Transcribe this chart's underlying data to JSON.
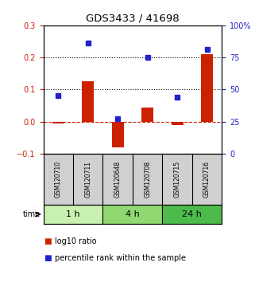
{
  "title": "GDS3433 / 41698",
  "samples": [
    "GSM120710",
    "GSM120711",
    "GSM120648",
    "GSM120708",
    "GSM120715",
    "GSM120716"
  ],
  "log10_ratio": [
    -0.005,
    0.125,
    -0.08,
    0.045,
    -0.01,
    0.21
  ],
  "percentile_rank": [
    0.08,
    0.245,
    0.01,
    0.2,
    0.075,
    0.225
  ],
  "time_groups": [
    {
      "label": "1 h",
      "start": 0,
      "end": 2,
      "color": "#c8f0b0"
    },
    {
      "label": "4 h",
      "start": 2,
      "end": 4,
      "color": "#90d870"
    },
    {
      "label": "24 h",
      "start": 4,
      "end": 6,
      "color": "#4cbb4c"
    }
  ],
  "left_ylim": [
    -0.1,
    0.3
  ],
  "right_ylim": [
    0,
    100
  ],
  "left_yticks": [
    -0.1,
    0.0,
    0.1,
    0.2,
    0.3
  ],
  "right_yticks": [
    0,
    25,
    50,
    75,
    100
  ],
  "right_yticklabels": [
    "0",
    "25",
    "50",
    "75",
    "100%"
  ],
  "hlines": [
    0.1,
    0.2
  ],
  "bar_color": "#cc2200",
  "marker_color": "#2222cc",
  "bar_width": 0.4,
  "background_color": "#ffffff"
}
